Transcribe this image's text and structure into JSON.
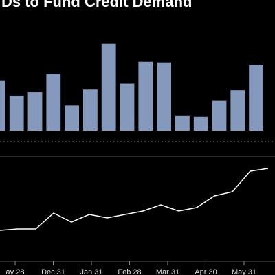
{
  "title": "Ds to Fund Credit Demand",
  "chart_data": [
    {
      "type": "bar",
      "color": "#8599bd",
      "ylim": [
        0,
        140
      ],
      "values": [
        75,
        53,
        58,
        86,
        38,
        62,
        131,
        71,
        104,
        103,
        22,
        21,
        45,
        61,
        99
      ]
    },
    {
      "type": "line",
      "color": "#ffffff",
      "ylim": [
        0,
        130
      ],
      "values": [
        25,
        27,
        27,
        50,
        37,
        48,
        43,
        48,
        53,
        62,
        53,
        58,
        75,
        81,
        111,
        115
      ]
    }
  ],
  "x_labels": [
    "ay 28",
    "Dec 31",
    "Jan 31",
    "Feb 28",
    "Mar 31",
    "Apr 30",
    "May 31"
  ]
}
